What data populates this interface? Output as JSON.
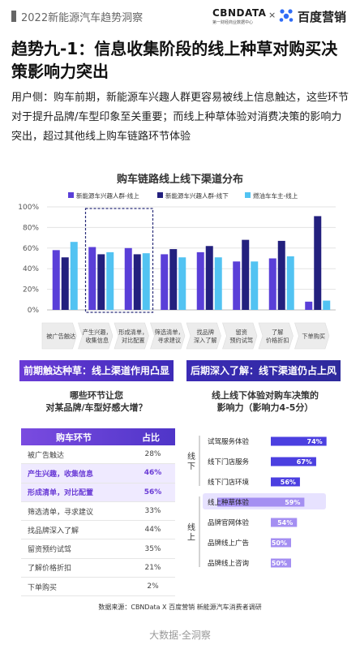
{
  "header": {
    "doc_title": "2022新能源汽车趋势洞察",
    "cbn_name": "CBNDATA",
    "cbn_sub": "第一财经商业数据中心",
    "separator": "×",
    "baidu_name": "百度营销"
  },
  "headline": "趋势九-1：信息收集阶段的线上种草对购买决策影响力突出",
  "intro": "用户侧：购车前期，新能源车兴趣人群更容易被线上信息触达，这些环节对于提升品牌/车型印象至关重要；而线上种草体验对消费决策的影响力突出，超过其他线上购车链路环节体验",
  "colors": {
    "purple_dark": "#5a3fd8",
    "navy": "#23207e",
    "cyan": "#52c3f2",
    "bar_blue": "#4b3fe0",
    "bar_lavender": "#a48ff2"
  },
  "chart_data": [
    {
      "type": "bar",
      "title": "购车链路线上线下渠道分布",
      "categories": [
        "被广告触达",
        "产生兴趣，收集信息",
        "形成清单，对比配置",
        "筛选清单，寻求建议",
        "找品牌深入了解",
        "留资预约试驾",
        "了解价格折扣",
        "下单购买"
      ],
      "category_lines": [
        [
          "被广告触达"
        ],
        [
          "产生兴趣，",
          "收集信息"
        ],
        [
          "形成清单，",
          "对比配置"
        ],
        [
          "筛选清单，",
          "寻求建议"
        ],
        [
          "找品牌",
          "深入了解"
        ],
        [
          "留资",
          "预约试驾"
        ],
        [
          "了解",
          "价格折扣"
        ],
        [
          "下单购买"
        ]
      ],
      "series": [
        {
          "name": "新能源车兴趣人群-线上",
          "color": "#5a3fd8",
          "values": [
            58,
            61,
            60,
            54,
            56,
            47,
            50,
            8
          ]
        },
        {
          "name": "新能源车兴趣人群-线下",
          "color": "#23207e",
          "values": [
            51,
            54,
            54,
            59,
            62,
            68,
            67,
            91
          ]
        },
        {
          "name": "燃油车车主-线上",
          "color": "#52c3f2",
          "values": [
            66,
            56,
            55,
            51,
            51,
            47,
            52,
            9
          ]
        }
      ],
      "yticks": [
        "0%",
        "20%",
        "40%",
        "60%",
        "80%",
        "100%"
      ],
      "ylim": [
        0,
        100
      ],
      "highlight_categories": [
        1,
        2
      ],
      "legend": "top"
    },
    {
      "type": "table",
      "title": "哪些环节让您对某品牌/车型好感大增？",
      "columns": [
        "购车环节",
        "占比"
      ],
      "rows": [
        {
          "label": "被广告触达",
          "value": "28%",
          "highlight": false
        },
        {
          "label": "产生兴趣，收集信息",
          "value": "46%",
          "highlight": true
        },
        {
          "label": "形成清单，对比配置",
          "value": "56%",
          "highlight": true
        },
        {
          "label": "筛选清单，寻求建议",
          "value": "33%",
          "highlight": false
        },
        {
          "label": "找品牌深入了解",
          "value": "44%",
          "highlight": false
        },
        {
          "label": "留资预约试驾",
          "value": "35%",
          "highlight": false
        },
        {
          "label": "了解价格折扣",
          "value": "21%",
          "highlight": false
        },
        {
          "label": "下单购买",
          "value": "2%",
          "highlight": false
        }
      ]
    },
    {
      "type": "bar",
      "title": "线上线下体验对购车决策的影响力（影响力4-5分）",
      "groups": [
        {
          "name": "线下",
          "items": [
            0,
            1,
            2
          ]
        },
        {
          "name": "线上",
          "items": [
            3,
            4,
            5,
            6
          ]
        }
      ],
      "categories": [
        "试驾服务体验",
        "线下门店服务",
        "线下门店环境",
        "线上种草体验",
        "品牌官网体验",
        "品牌线上广告",
        "品牌线上咨询"
      ],
      "values": [
        74,
        67,
        56,
        59,
        54,
        50,
        50
      ],
      "value_labels": [
        "74%",
        "67%",
        "56%",
        "59%",
        "54%",
        "50%",
        "50%"
      ],
      "highlight_index": 3,
      "xlim": [
        0,
        100
      ]
    }
  ],
  "banners": {
    "left": "前期触达种草：线上渠道作用凸显",
    "right": "后期深入了解：线下渠道仍占上风"
  },
  "questions": {
    "left_line1": "哪些环节让您",
    "left_line2": "对某品牌/车型好感大增？",
    "right_line1": "线上线下体验对购车决策的",
    "right_line2": "影响力（影响力4-5分）"
  },
  "source": "数据来源：CBNData X 百度营销 新能源汽车消费者调研",
  "footer": "大数据·全洞察"
}
